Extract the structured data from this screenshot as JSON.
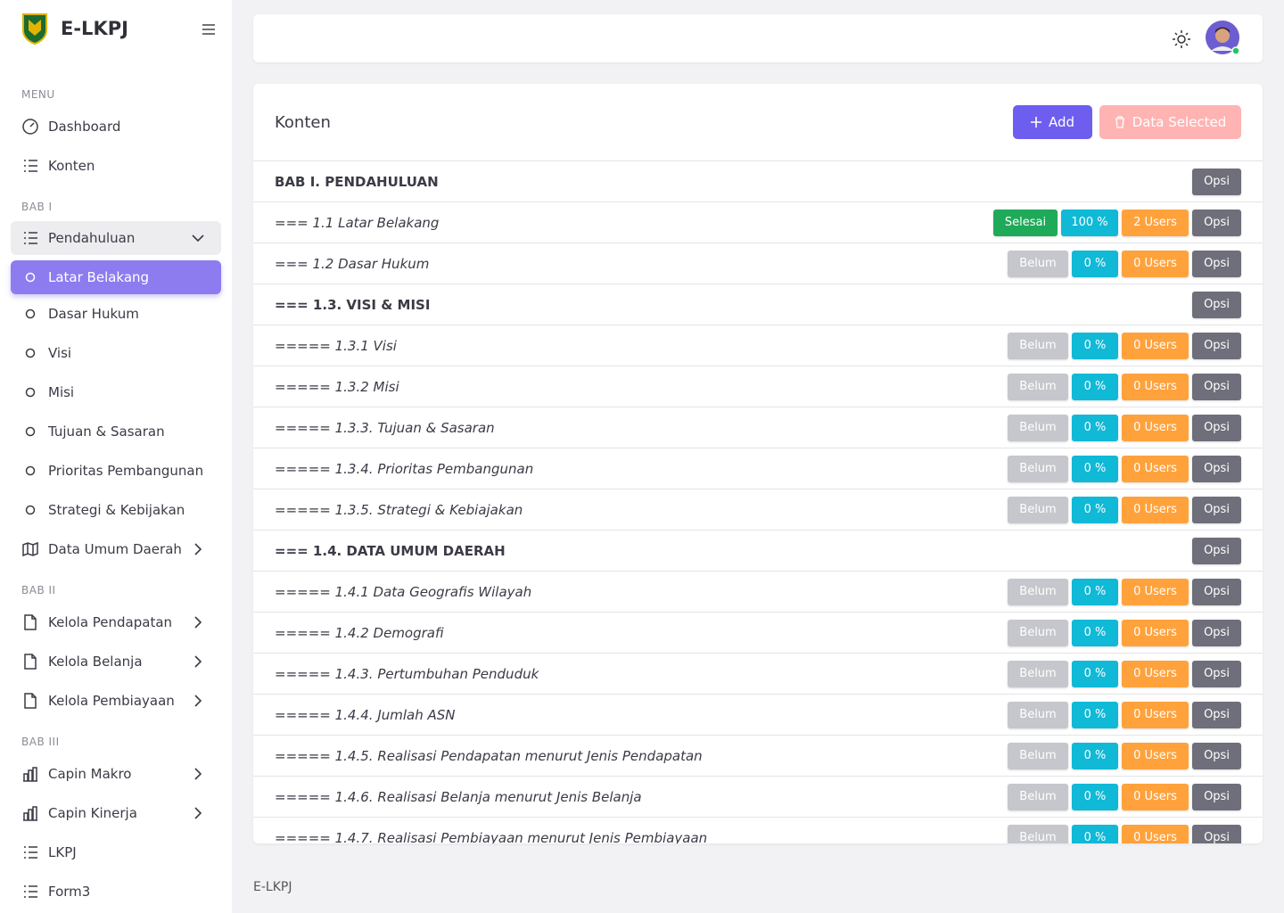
{
  "sidebar": {
    "brand": "E-LKPJ",
    "sections": [
      {
        "title": "MENU",
        "items": [
          {
            "label": "Dashboard",
            "icon": "gauge"
          },
          {
            "label": "Konten",
            "icon": "list"
          }
        ]
      },
      {
        "title": "BAB I",
        "items": [
          {
            "label": "Pendahuluan",
            "icon": "list",
            "chevron": "down",
            "open": true
          },
          {
            "label": "Latar Belakang",
            "icon": "circle",
            "active": true
          },
          {
            "label": "Dasar Hukum",
            "icon": "circle"
          },
          {
            "label": "Visi",
            "icon": "circle"
          },
          {
            "label": "Misi",
            "icon": "circle"
          },
          {
            "label": "Tujuan & Sasaran",
            "icon": "circle"
          },
          {
            "label": "Prioritas Pembangunan",
            "icon": "circle"
          },
          {
            "label": "Strategi & Kebijakan",
            "icon": "circle"
          },
          {
            "label": "Data Umum Daerah",
            "icon": "map",
            "chevron": "right"
          }
        ]
      },
      {
        "title": "BAB II",
        "items": [
          {
            "label": "Kelola Pendapatan",
            "icon": "file",
            "chevron": "right"
          },
          {
            "label": "Kelola Belanja",
            "icon": "file",
            "chevron": "right"
          },
          {
            "label": "Kelola Pembiayaan",
            "icon": "file",
            "chevron": "right"
          }
        ]
      },
      {
        "title": "BAB III",
        "items": [
          {
            "label": "Capin Makro",
            "icon": "chart",
            "chevron": "right"
          },
          {
            "label": "Capin Kinerja",
            "icon": "chart",
            "chevron": "right"
          },
          {
            "label": "LKPJ",
            "icon": "list"
          },
          {
            "label": "Form3",
            "icon": "list"
          }
        ]
      }
    ]
  },
  "content": {
    "title": "Konten",
    "add_button": "Add",
    "delete_button": "Data Selected",
    "rows": [
      {
        "label": "BAB I. PENDAHULUAN",
        "heading": true,
        "option": "Opsi"
      },
      {
        "label": "=== 1.1 Latar Belakang",
        "status": "Selesai",
        "done": true,
        "progress": "100 %",
        "users": "2 Users",
        "option": "Opsi"
      },
      {
        "label": "=== 1.2 Dasar Hukum",
        "status": "Belum",
        "progress": "0 %",
        "users": "0 Users",
        "option": "Opsi"
      },
      {
        "label": "=== 1.3. VISI & MISI",
        "heading": true,
        "option": "Opsi"
      },
      {
        "label": "===== 1.3.1 Visi",
        "status": "Belum",
        "progress": "0 %",
        "users": "0 Users",
        "option": "Opsi"
      },
      {
        "label": "===== 1.3.2 Misi",
        "status": "Belum",
        "progress": "0 %",
        "users": "0 Users",
        "option": "Opsi"
      },
      {
        "label": "===== 1.3.3. Tujuan & Sasaran",
        "status": "Belum",
        "progress": "0 %",
        "users": "0 Users",
        "option": "Opsi"
      },
      {
        "label": "===== 1.3.4. Prioritas Pembangunan",
        "status": "Belum",
        "progress": "0 %",
        "users": "0 Users",
        "option": "Opsi"
      },
      {
        "label": "===== 1.3.5. Strategi & Kebiajakan",
        "status": "Belum",
        "progress": "0 %",
        "users": "0 Users",
        "option": "Opsi"
      },
      {
        "label": "=== 1.4. DATA UMUM DAERAH",
        "heading": true,
        "option": "Opsi"
      },
      {
        "label": "===== 1.4.1 Data Geografis Wilayah",
        "status": "Belum",
        "progress": "0 %",
        "users": "0 Users",
        "option": "Opsi"
      },
      {
        "label": "===== 1.4.2 Demografi",
        "status": "Belum",
        "progress": "0 %",
        "users": "0 Users",
        "option": "Opsi"
      },
      {
        "label": "===== 1.4.3. Pertumbuhan Penduduk",
        "status": "Belum",
        "progress": "0 %",
        "users": "0 Users",
        "option": "Opsi"
      },
      {
        "label": "===== 1.4.4. Jumlah ASN",
        "status": "Belum",
        "progress": "0 %",
        "users": "0 Users",
        "option": "Opsi"
      },
      {
        "label": "===== 1.4.5. Realisasi Pendapatan menurut Jenis Pendapatan",
        "status": "Belum",
        "progress": "0 %",
        "users": "0 Users",
        "option": "Opsi"
      },
      {
        "label": "===== 1.4.6. Realisasi Belanja menurut Jenis Belanja",
        "status": "Belum",
        "progress": "0 %",
        "users": "0 Users",
        "option": "Opsi"
      },
      {
        "label": "===== 1.4.7. Realisasi Pembiayaan menurut Jenis Pembiayaan",
        "status": "Belum",
        "progress": "0 %",
        "users": "0 Users",
        "option": "Opsi"
      }
    ]
  },
  "footer": "E-LKPJ"
}
